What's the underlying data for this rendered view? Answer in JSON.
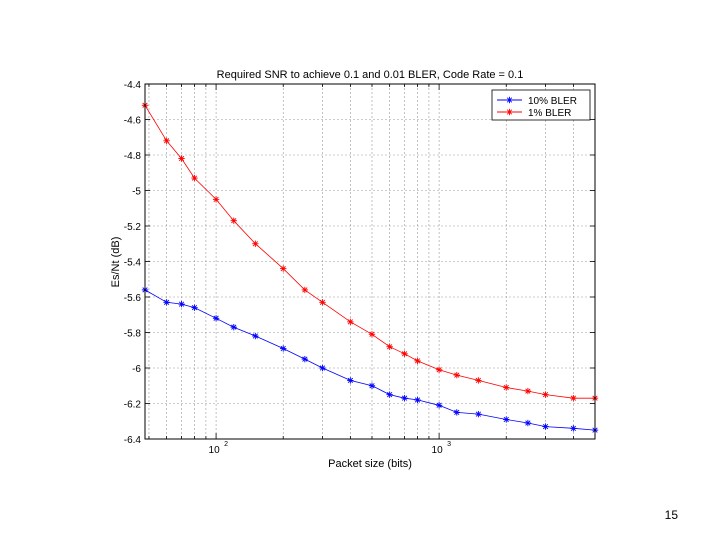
{
  "slide": {
    "page_number": "15"
  },
  "chart_data": {
    "type": "line",
    "title": "Required SNR to achieve 0.1 and 0.01 BLER, Code Rate = 0.1",
    "xlabel": "Packet size (bits)",
    "ylabel": "Es/Nt (dB)",
    "x_scale": "log",
    "xlim": [
      48,
      5000
    ],
    "ylim": [
      -6.4,
      -4.4
    ],
    "x_major_ticks": [
      {
        "value": 100,
        "base": "10",
        "exp": "2"
      },
      {
        "value": 1000,
        "base": "10",
        "exp": "3"
      }
    ],
    "y_ticks": [
      -4.4,
      -4.6,
      -4.8,
      -5,
      -5.2,
      -5.4,
      -5.6,
      -5.8,
      -6,
      -6.2,
      -6.4
    ],
    "grid": "on",
    "legend_position": "top-right",
    "series": [
      {
        "name": "10% BLER",
        "color": "#0000ff",
        "marker": "asterisk",
        "x": [
          48,
          60,
          70,
          80,
          100,
          120,
          150,
          200,
          250,
          300,
          400,
          500,
          600,
          700,
          800,
          1000,
          1200,
          1500,
          2000,
          2500,
          3000,
          4000,
          5000
        ],
        "y": [
          -5.56,
          -5.63,
          -5.64,
          -5.66,
          -5.72,
          -5.77,
          -5.82,
          -5.89,
          -5.95,
          -6.0,
          -6.07,
          -6.1,
          -6.15,
          -6.17,
          -6.18,
          -6.21,
          -6.25,
          -6.26,
          -6.29,
          -6.31,
          -6.33,
          -6.34,
          -6.35
        ]
      },
      {
        "name": "1% BLER",
        "color": "#ff0000",
        "marker": "asterisk",
        "x": [
          48,
          60,
          70,
          80,
          100,
          120,
          150,
          200,
          250,
          300,
          400,
          500,
          600,
          700,
          800,
          1000,
          1200,
          1500,
          2000,
          2500,
          3000,
          4000,
          5000
        ],
        "y": [
          -4.52,
          -4.72,
          -4.82,
          -4.93,
          -5.05,
          -5.17,
          -5.3,
          -5.44,
          -5.56,
          -5.63,
          -5.74,
          -5.81,
          -5.88,
          -5.92,
          -5.96,
          -6.01,
          -6.04,
          -6.07,
          -6.11,
          -6.13,
          -6.15,
          -6.17,
          -6.17
        ]
      }
    ]
  }
}
